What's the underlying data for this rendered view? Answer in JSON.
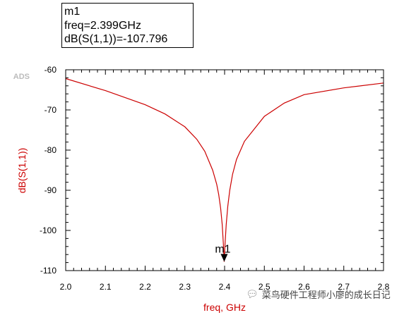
{
  "marker": {
    "name": "m1",
    "line1": "m1",
    "line2": "freq=2.399GHz",
    "line3": "dB(S(1,1))=-107.796",
    "x": 2.399,
    "y": -107.796
  },
  "watermark": {
    "text": "菜鸟硬件工程师小廖的成长日记",
    "icon": "wechat-icon"
  },
  "colors": {
    "trace": "#cc0000",
    "axis_label": "#cc0000",
    "frame": "#000000",
    "badge": "#bbbbbb"
  },
  "chart_data": {
    "type": "line",
    "badge": "ADS",
    "xlabel": "freq, GHz",
    "ylabel": "dB(S(1,1))",
    "xlim": [
      2.0,
      2.8
    ],
    "ylim": [
      -110,
      -60
    ],
    "xticks": [
      "2.0",
      "2.1",
      "2.2",
      "2.3",
      "2.4",
      "2.5",
      "2.6",
      "2.7",
      "2.8"
    ],
    "yticks": [
      "-60",
      "-70",
      "-80",
      "-90",
      "-100",
      "-110"
    ],
    "grid": false,
    "series": [
      {
        "x": [
          2.0,
          2.1,
          2.2,
          2.25,
          2.3,
          2.33,
          2.35,
          2.37,
          2.38,
          2.385,
          2.39,
          2.394,
          2.397,
          2.399,
          2.401,
          2.404,
          2.408,
          2.413,
          2.42,
          2.43,
          2.45,
          2.5,
          2.55,
          2.6,
          2.7,
          2.8
        ],
        "y": [
          -62.2,
          -65.2,
          -68.7,
          -71.0,
          -74.2,
          -77.3,
          -80.3,
          -85.0,
          -88.5,
          -91.0,
          -94.5,
          -98.5,
          -103.5,
          -107.8,
          -103.5,
          -98.5,
          -94.0,
          -90.0,
          -86.0,
          -82.3,
          -77.8,
          -71.6,
          -68.3,
          -66.2,
          -64.5,
          -63.3
        ]
      }
    ]
  }
}
